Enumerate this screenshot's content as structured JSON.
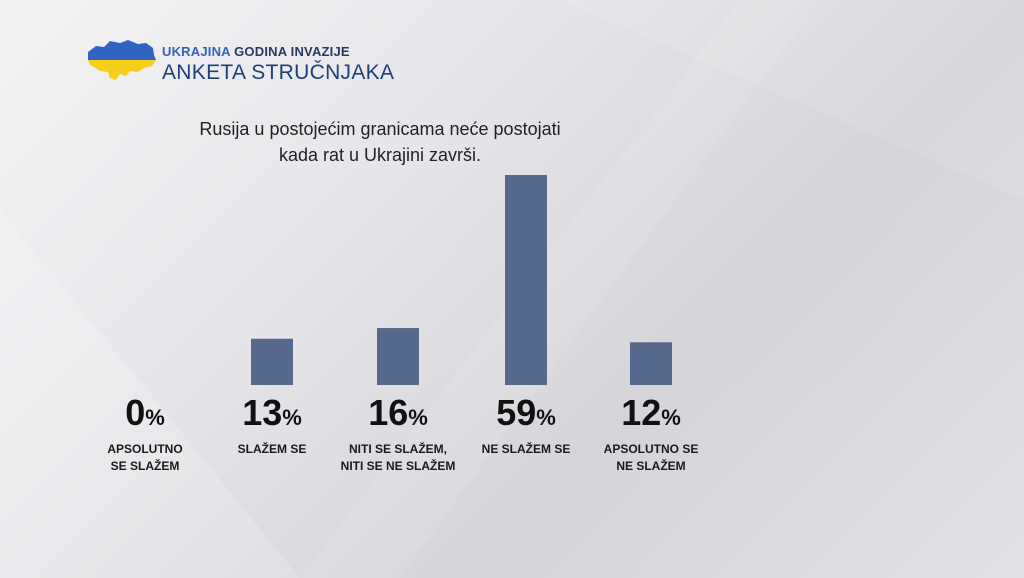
{
  "header": {
    "line1_blue": "UKRAJINA",
    "line1_dark": "GODINA INVAZIJE",
    "line2": "ANKETA STRUČNJAKA"
  },
  "colors": {
    "bar": "#56698c",
    "flag_blue": "#2f64c2",
    "flag_yellow": "#f5cf1c"
  },
  "icons": {
    "logo": "ukraine-map-icon"
  },
  "chart_data": {
    "type": "bar",
    "title_lines": [
      "Rusija u postojećim granicama neće postojati",
      "kada rat u Ukrajini završi."
    ],
    "categories": [
      [
        "APSOLUTNO",
        "SE SLAŽEM"
      ],
      [
        "SLAŽEM SE"
      ],
      [
        "NITI SE SLAŽEM,",
        "NITI SE NE SLAŽEM"
      ],
      [
        "NE SLAŽEM SE"
      ],
      [
        "APSOLUTNO SE",
        "NE SLAŽEM"
      ]
    ],
    "values": [
      0,
      13,
      16,
      59,
      12
    ],
    "value_labels": [
      "0",
      "13",
      "16",
      "59",
      "12"
    ],
    "unit": "%",
    "ylim": [
      0,
      59
    ],
    "grid": false,
    "legend": "none"
  }
}
